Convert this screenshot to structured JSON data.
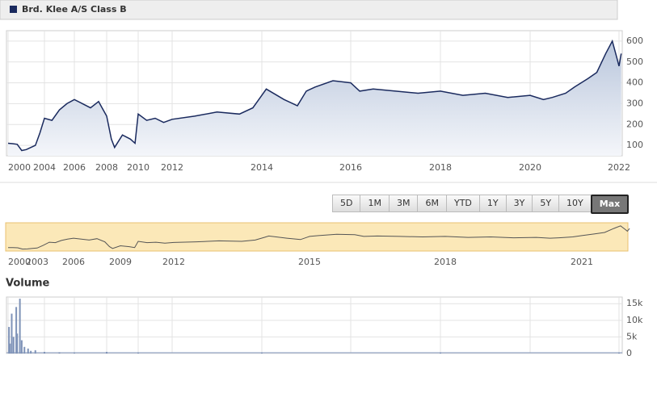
{
  "chart_data": [
    {
      "type": "area",
      "series": [
        {
          "name": "Brd. Klee A/S Class B",
          "color": "#1a2a5e",
          "x": [
            2000,
            2000.5,
            2001,
            2001.5,
            2002,
            2002.5,
            2003,
            2003.5,
            2004,
            2004.5,
            2005,
            2005.5,
            2006,
            2006.5,
            2007,
            2007.5,
            2008,
            2008.3,
            2008.5,
            2009,
            2009.5,
            2009.8,
            2010,
            2010.5,
            2011,
            2011.5,
            2012,
            2012.5,
            2013,
            2013.5,
            2013.8,
            2014,
            2014.1,
            2014.5,
            2014.8,
            2015,
            2015.2,
            2015.6,
            2016,
            2016.2,
            2016.5,
            2017,
            2017.5,
            2018,
            2018.5,
            2019,
            2019.5,
            2020,
            2020.3,
            2020.5,
            2020.8,
            2021,
            2021.3,
            2021.5,
            2021.7,
            2021.85,
            2021.95,
            2022,
            2022.05
          ],
          "values": [
            110,
            108,
            105,
            75,
            80,
            90,
            100,
            160,
            230,
            220,
            270,
            300,
            320,
            300,
            280,
            310,
            240,
            130,
            90,
            150,
            130,
            110,
            250,
            220,
            230,
            210,
            225,
            240,
            260,
            250,
            280,
            340,
            370,
            320,
            290,
            360,
            380,
            410,
            400,
            360,
            370,
            360,
            350,
            360,
            340,
            350,
            330,
            340,
            320,
            330,
            350,
            380,
            420,
            450,
            540,
            600,
            520,
            480,
            540
          ]
        }
      ],
      "xlim": [
        2000,
        2022.1
      ],
      "xticks": [
        2000,
        2004,
        2006,
        2008,
        2010,
        2012,
        2014,
        2016,
        2018,
        2020,
        2022
      ],
      "ylim": [
        50,
        650
      ],
      "yticks": [
        100,
        200,
        300,
        400,
        500,
        600
      ],
      "grid": true,
      "range_buttons": [
        "5D",
        "1M",
        "3M",
        "6M",
        "YTD",
        "1Y",
        "3Y",
        "5Y",
        "10Y",
        "Max"
      ],
      "selected_range": "Max",
      "navigator_xticks": [
        2000,
        2003,
        2006,
        2009,
        2012,
        2015,
        2018,
        2021
      ]
    },
    {
      "type": "bar",
      "title": "Volume",
      "color": "#7f93b8",
      "x": [
        2000.1,
        2000.2,
        2000.4,
        2000.6,
        2000.9,
        2001,
        2001.3,
        2001.5,
        2001.8,
        2002.2,
        2002.5,
        2003,
        2004,
        2005,
        2006,
        2008,
        2010,
        2014,
        2018,
        2022
      ],
      "values": [
        8000,
        3000,
        12000,
        5000,
        14000,
        6000,
        16500,
        4000,
        2000,
        1500,
        800,
        1000,
        500,
        400,
        300,
        500,
        300,
        200,
        200,
        300
      ],
      "xlim": [
        2000,
        2022.1
      ],
      "ylim": [
        0,
        17000
      ],
      "yticks": [
        0,
        {
          "value": 5000,
          "label": "5k"
        },
        {
          "value": 10000,
          "label": "10k"
        },
        {
          "value": 15000,
          "label": "15k"
        }
      ],
      "grid": true
    }
  ]
}
